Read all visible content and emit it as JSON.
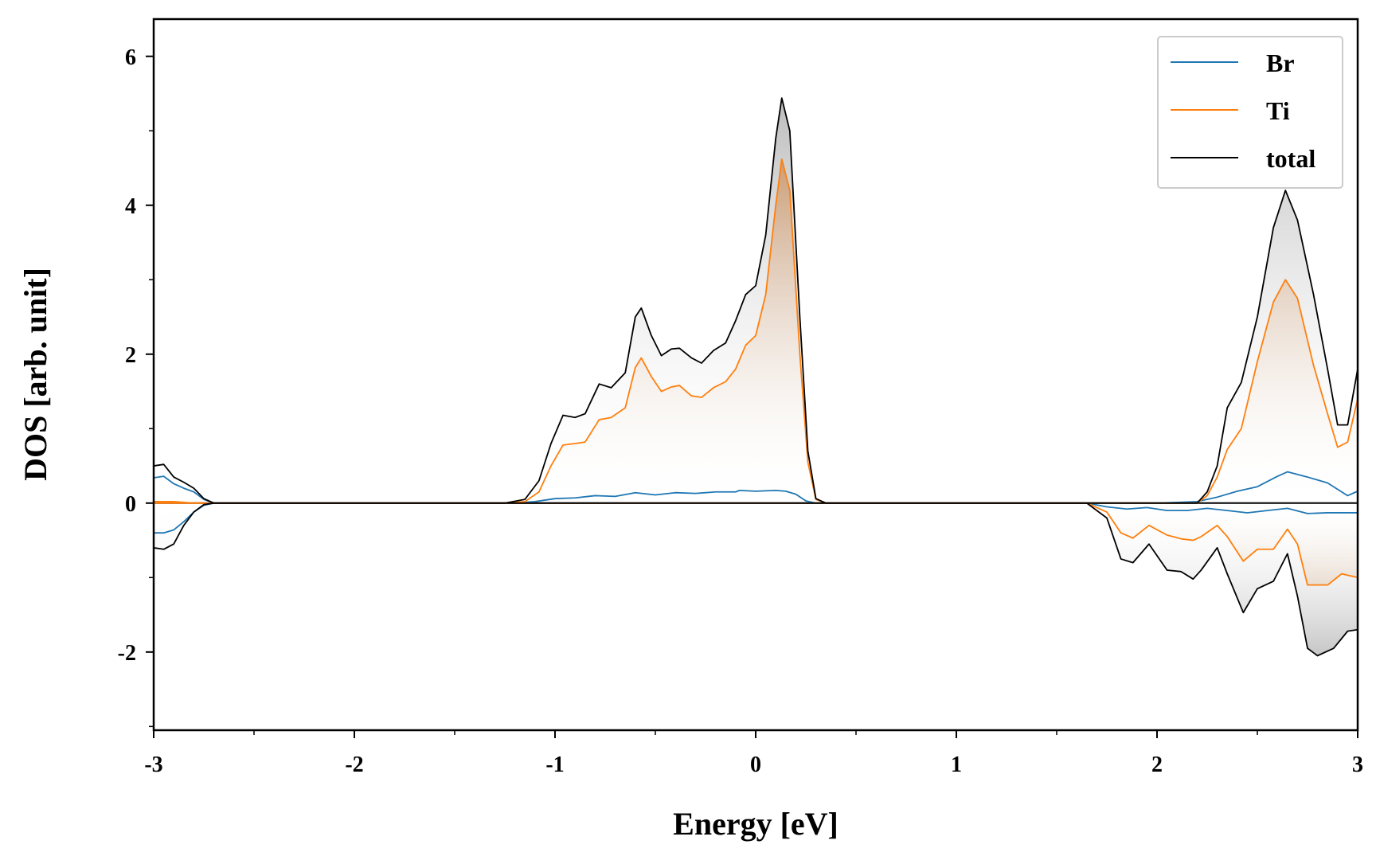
{
  "chart_data": {
    "type": "area",
    "xlabel": "Energy [eV]",
    "ylabel": "DOS [arb. unit]",
    "xlim": [
      -3,
      3
    ],
    "ylim": [
      -3.05,
      6.5
    ],
    "xticks": [
      -3,
      -2,
      -1,
      0,
      1,
      2,
      3
    ],
    "xtick_labels": [
      "-3",
      "-2",
      "-1",
      "0",
      "1",
      "2",
      "3"
    ],
    "yticks": [
      -2,
      0,
      2,
      4,
      6
    ],
    "ytick_labels": [
      "-2",
      "0",
      "2",
      "4",
      "6"
    ],
    "grid": false,
    "legend_position": "top-right",
    "series": [
      {
        "name": "Br",
        "color": "#1f77b4",
        "up": [
          [
            -3.0,
            0.34
          ],
          [
            -2.95,
            0.36
          ],
          [
            -2.9,
            0.26
          ],
          [
            -2.85,
            0.2
          ],
          [
            -2.8,
            0.15
          ],
          [
            -2.75,
            0.05
          ],
          [
            -2.7,
            0.0
          ],
          [
            -1.2,
            0.0
          ],
          [
            -1.1,
            0.02
          ],
          [
            -1.0,
            0.06
          ],
          [
            -0.9,
            0.07
          ],
          [
            -0.8,
            0.1
          ],
          [
            -0.7,
            0.09
          ],
          [
            -0.6,
            0.14
          ],
          [
            -0.5,
            0.11
          ],
          [
            -0.4,
            0.14
          ],
          [
            -0.3,
            0.13
          ],
          [
            -0.2,
            0.15
          ],
          [
            -0.1,
            0.15
          ],
          [
            -0.08,
            0.17
          ],
          [
            0.0,
            0.16
          ],
          [
            0.1,
            0.17
          ],
          [
            0.15,
            0.16
          ],
          [
            0.2,
            0.12
          ],
          [
            0.25,
            0.03
          ],
          [
            0.3,
            0.0
          ],
          [
            1.65,
            0.0
          ],
          [
            1.8,
            0.0
          ],
          [
            2.0,
            0.0
          ],
          [
            2.1,
            0.01
          ],
          [
            2.2,
            0.02
          ],
          [
            2.3,
            0.08
          ],
          [
            2.4,
            0.16
          ],
          [
            2.5,
            0.22
          ],
          [
            2.6,
            0.36
          ],
          [
            2.65,
            0.42
          ],
          [
            2.75,
            0.35
          ],
          [
            2.85,
            0.27
          ],
          [
            2.95,
            0.1
          ],
          [
            3.0,
            0.16
          ]
        ],
        "down": [
          [
            -3.0,
            -0.4
          ],
          [
            -2.95,
            -0.4
          ],
          [
            -2.9,
            -0.36
          ],
          [
            -2.85,
            -0.25
          ],
          [
            -2.8,
            -0.12
          ],
          [
            -2.75,
            -0.03
          ],
          [
            -2.7,
            0.0
          ],
          [
            1.65,
            0.0
          ],
          [
            1.75,
            -0.05
          ],
          [
            1.85,
            -0.08
          ],
          [
            1.95,
            -0.06
          ],
          [
            2.05,
            -0.1
          ],
          [
            2.15,
            -0.1
          ],
          [
            2.25,
            -0.07
          ],
          [
            2.35,
            -0.1
          ],
          [
            2.45,
            -0.13
          ],
          [
            2.55,
            -0.1
          ],
          [
            2.65,
            -0.07
          ],
          [
            2.75,
            -0.14
          ],
          [
            2.85,
            -0.13
          ],
          [
            3.0,
            -0.13
          ]
        ]
      },
      {
        "name": "Ti",
        "color": "#ff7f0e",
        "up": [
          [
            -3.0,
            0.02
          ],
          [
            -2.9,
            0.02
          ],
          [
            -2.8,
            0.0
          ],
          [
            -1.25,
            0.0
          ],
          [
            -1.15,
            0.02
          ],
          [
            -1.08,
            0.15
          ],
          [
            -1.02,
            0.5
          ],
          [
            -0.96,
            0.78
          ],
          [
            -0.9,
            0.8
          ],
          [
            -0.85,
            0.82
          ],
          [
            -0.78,
            1.12
          ],
          [
            -0.72,
            1.15
          ],
          [
            -0.65,
            1.28
          ],
          [
            -0.6,
            1.82
          ],
          [
            -0.57,
            1.95
          ],
          [
            -0.52,
            1.7
          ],
          [
            -0.47,
            1.5
          ],
          [
            -0.42,
            1.56
          ],
          [
            -0.38,
            1.58
          ],
          [
            -0.32,
            1.44
          ],
          [
            -0.27,
            1.42
          ],
          [
            -0.21,
            1.55
          ],
          [
            -0.15,
            1.63
          ],
          [
            -0.1,
            1.8
          ],
          [
            -0.05,
            2.12
          ],
          [
            0.0,
            2.25
          ],
          [
            0.05,
            2.8
          ],
          [
            0.1,
            4.0
          ],
          [
            0.13,
            4.62
          ],
          [
            0.17,
            4.2
          ],
          [
            0.22,
            2.0
          ],
          [
            0.26,
            0.55
          ],
          [
            0.3,
            0.05
          ],
          [
            0.35,
            0.0
          ],
          [
            2.2,
            0.0
          ],
          [
            2.25,
            0.1
          ],
          [
            2.3,
            0.35
          ],
          [
            2.35,
            0.72
          ],
          [
            2.42,
            1.0
          ],
          [
            2.5,
            1.9
          ],
          [
            2.58,
            2.7
          ],
          [
            2.64,
            3.0
          ],
          [
            2.7,
            2.75
          ],
          [
            2.78,
            1.85
          ],
          [
            2.85,
            1.2
          ],
          [
            2.9,
            0.75
          ],
          [
            2.95,
            0.82
          ],
          [
            3.0,
            1.4
          ]
        ],
        "down": [
          [
            -3.0,
            0.0
          ],
          [
            -2.7,
            0.0
          ],
          [
            1.65,
            0.0
          ],
          [
            1.75,
            -0.12
          ],
          [
            1.82,
            -0.4
          ],
          [
            1.88,
            -0.47
          ],
          [
            1.96,
            -0.3
          ],
          [
            2.05,
            -0.43
          ],
          [
            2.12,
            -0.48
          ],
          [
            2.18,
            -0.5
          ],
          [
            2.22,
            -0.45
          ],
          [
            2.3,
            -0.3
          ],
          [
            2.35,
            -0.45
          ],
          [
            2.43,
            -0.78
          ],
          [
            2.5,
            -0.62
          ],
          [
            2.58,
            -0.62
          ],
          [
            2.65,
            -0.35
          ],
          [
            2.7,
            -0.55
          ],
          [
            2.75,
            -1.1
          ],
          [
            2.85,
            -1.1
          ],
          [
            2.92,
            -0.95
          ],
          [
            3.0,
            -1.0
          ]
        ]
      },
      {
        "name": "total",
        "color": "#000000",
        "up": [
          [
            -3.0,
            0.5
          ],
          [
            -2.95,
            0.52
          ],
          [
            -2.9,
            0.35
          ],
          [
            -2.85,
            0.28
          ],
          [
            -2.8,
            0.2
          ],
          [
            -2.75,
            0.06
          ],
          [
            -2.7,
            0.0
          ],
          [
            -1.25,
            0.0
          ],
          [
            -1.15,
            0.05
          ],
          [
            -1.08,
            0.3
          ],
          [
            -1.02,
            0.8
          ],
          [
            -0.96,
            1.18
          ],
          [
            -0.9,
            1.15
          ],
          [
            -0.85,
            1.2
          ],
          [
            -0.78,
            1.6
          ],
          [
            -0.72,
            1.55
          ],
          [
            -0.65,
            1.75
          ],
          [
            -0.6,
            2.5
          ],
          [
            -0.57,
            2.62
          ],
          [
            -0.52,
            2.25
          ],
          [
            -0.47,
            1.98
          ],
          [
            -0.42,
            2.07
          ],
          [
            -0.38,
            2.08
          ],
          [
            -0.32,
            1.95
          ],
          [
            -0.27,
            1.88
          ],
          [
            -0.21,
            2.05
          ],
          [
            -0.15,
            2.15
          ],
          [
            -0.1,
            2.45
          ],
          [
            -0.05,
            2.8
          ],
          [
            0.0,
            2.92
          ],
          [
            0.05,
            3.6
          ],
          [
            0.1,
            4.9
          ],
          [
            0.13,
            5.44
          ],
          [
            0.17,
            5.0
          ],
          [
            0.22,
            2.5
          ],
          [
            0.26,
            0.7
          ],
          [
            0.3,
            0.06
          ],
          [
            0.35,
            0.0
          ],
          [
            2.2,
            0.0
          ],
          [
            2.25,
            0.15
          ],
          [
            2.3,
            0.5
          ],
          [
            2.35,
            1.28
          ],
          [
            2.42,
            1.62
          ],
          [
            2.5,
            2.5
          ],
          [
            2.58,
            3.7
          ],
          [
            2.64,
            4.2
          ],
          [
            2.7,
            3.8
          ],
          [
            2.78,
            2.8
          ],
          [
            2.85,
            1.8
          ],
          [
            2.9,
            1.05
          ],
          [
            2.95,
            1.05
          ],
          [
            3.0,
            1.8
          ]
        ],
        "down": [
          [
            -3.0,
            -0.6
          ],
          [
            -2.95,
            -0.62
          ],
          [
            -2.9,
            -0.55
          ],
          [
            -2.85,
            -0.3
          ],
          [
            -2.8,
            -0.12
          ],
          [
            -2.75,
            -0.02
          ],
          [
            -2.7,
            0.0
          ],
          [
            1.65,
            0.0
          ],
          [
            1.75,
            -0.2
          ],
          [
            1.82,
            -0.75
          ],
          [
            1.88,
            -0.8
          ],
          [
            1.96,
            -0.55
          ],
          [
            2.05,
            -0.9
          ],
          [
            2.12,
            -0.92
          ],
          [
            2.18,
            -1.02
          ],
          [
            2.22,
            -0.9
          ],
          [
            2.3,
            -0.6
          ],
          [
            2.35,
            -0.95
          ],
          [
            2.43,
            -1.47
          ],
          [
            2.5,
            -1.15
          ],
          [
            2.58,
            -1.05
          ],
          [
            2.65,
            -0.68
          ],
          [
            2.7,
            -1.25
          ],
          [
            2.75,
            -1.95
          ],
          [
            2.8,
            -2.05
          ],
          [
            2.88,
            -1.95
          ],
          [
            2.95,
            -1.72
          ],
          [
            3.0,
            -1.7
          ]
        ]
      }
    ]
  }
}
